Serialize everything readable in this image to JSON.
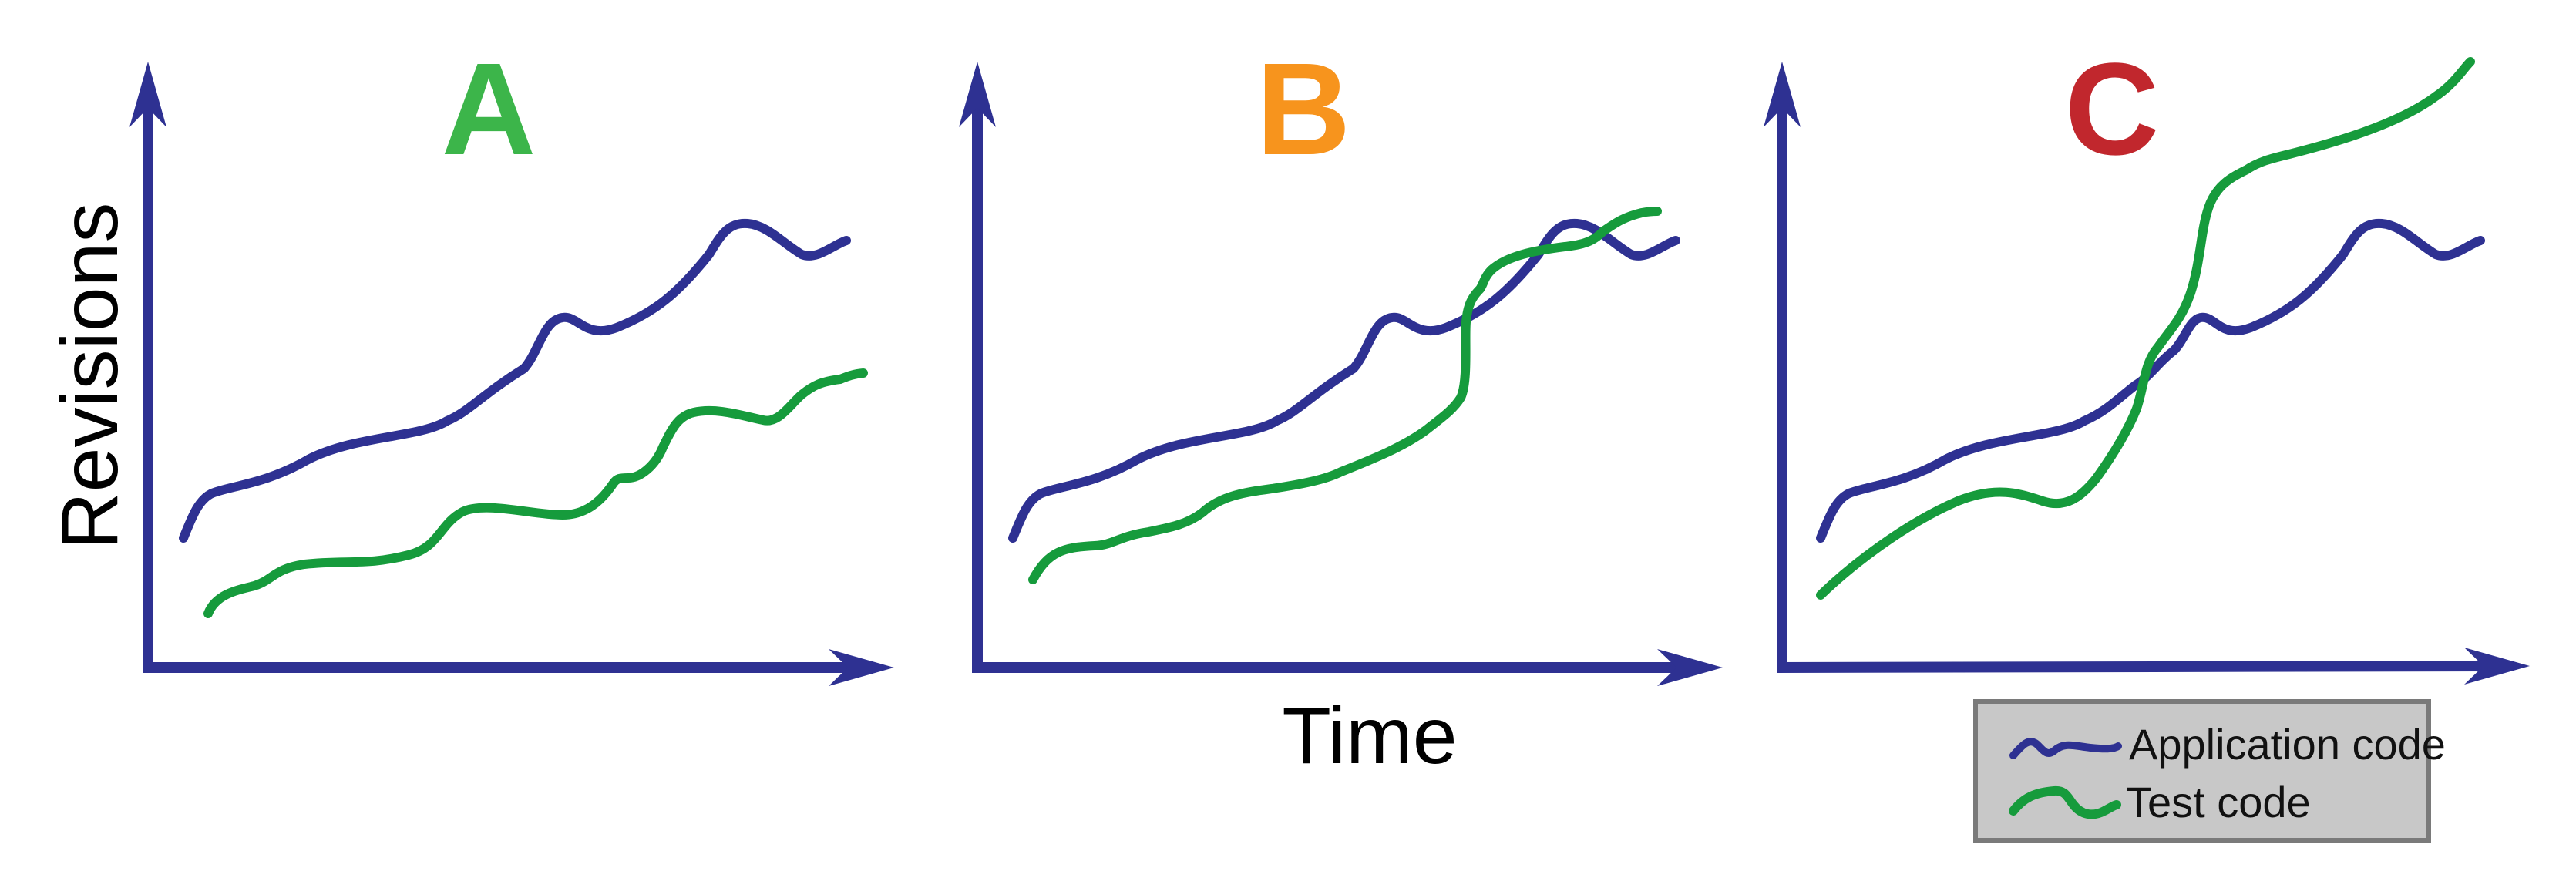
{
  "figure": {
    "y_axis_label": "Revisions",
    "x_axis_label": "Time"
  },
  "panels": [
    {
      "letter": "A",
      "letter_color": "#3cb54a"
    },
    {
      "letter": "B",
      "letter_color": "#f7941d"
    },
    {
      "letter": "C",
      "letter_color": "#c1272d"
    }
  ],
  "legend": {
    "application_label": "Application code",
    "test_label": "Test code"
  },
  "colors": {
    "axis": "#2e3192",
    "application_code": "#2e3192",
    "test_code": "#169b3c",
    "legend_background": "#c8c8c8",
    "legend_border": "#7a7a7a"
  }
}
